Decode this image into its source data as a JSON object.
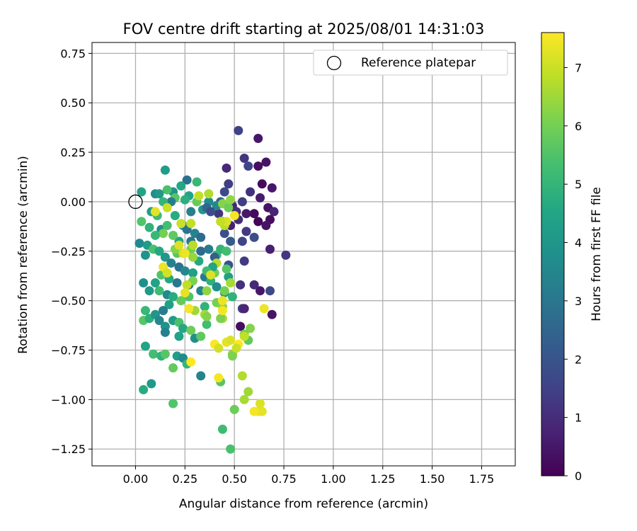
{
  "chart_data": {
    "type": "scatter",
    "title": "FOV centre drift starting at 2025/08/01 14:31:03",
    "xlabel": "Angular distance from reference (arcmin)",
    "ylabel": "Rotation from reference (arcmin)",
    "xlim": [
      -0.22,
      1.92
    ],
    "ylim": [
      -1.335,
      0.805
    ],
    "xticks": [
      0.0,
      0.25,
      0.5,
      0.75,
      1.0,
      1.25,
      1.5,
      1.75
    ],
    "xtick_labels": [
      "0.00",
      "0.25",
      "0.50",
      "0.75",
      "1.00",
      "1.25",
      "1.50",
      "1.75"
    ],
    "yticks": [
      0.75,
      0.5,
      0.25,
      0.0,
      -0.25,
      -0.5,
      -0.75,
      -1.0,
      -1.25
    ],
    "ytick_labels": [
      "0.75",
      "0.50",
      "0.25",
      "0.00",
      "−0.25",
      "−0.50",
      "−0.75",
      "−1.00",
      "−1.25"
    ],
    "grid": true,
    "legend": {
      "placement": "top-right",
      "label": "Reference platepar",
      "marker": "open-circle"
    },
    "reference_point": {
      "x": 0.0,
      "y": 0.0
    },
    "colorbar": {
      "label": "Hours from first FF file",
      "range": [
        0,
        7.6
      ],
      "ticks": [
        0,
        1,
        2,
        3,
        4,
        5,
        6,
        7
      ],
      "tick_labels": [
        "0",
        "1",
        "2",
        "3",
        "4",
        "5",
        "6",
        "7"
      ],
      "colormap": "viridis"
    },
    "series": [
      {
        "points": [
          [
            0.52,
            0.36,
            1.5
          ],
          [
            0.62,
            0.32,
            0.5
          ],
          [
            0.55,
            0.22,
            1.2
          ],
          [
            0.66,
            0.2,
            0.4
          ],
          [
            0.57,
            0.18,
            1.6
          ],
          [
            0.62,
            0.18,
            0.3
          ],
          [
            0.46,
            0.17,
            0.9
          ],
          [
            0.64,
            0.09,
            0.2
          ],
          [
            0.69,
            0.07,
            0.5
          ],
          [
            0.58,
            0.05,
            1.1
          ],
          [
            0.63,
            0.02,
            0.6
          ],
          [
            0.54,
            0.0,
            1.4
          ],
          [
            0.67,
            -0.03,
            0.4
          ],
          [
            0.6,
            -0.06,
            0.2
          ],
          [
            0.7,
            -0.05,
            0.8
          ],
          [
            0.56,
            -0.06,
            0.5
          ],
          [
            0.68,
            -0.09,
            0.3
          ],
          [
            0.62,
            -0.1,
            0.1
          ],
          [
            0.66,
            -0.12,
            0.4
          ],
          [
            0.52,
            -0.09,
            1.0
          ],
          [
            0.48,
            -0.12,
            0.7
          ],
          [
            0.56,
            -0.15,
            1.3
          ],
          [
            0.6,
            -0.18,
            1.8
          ],
          [
            0.54,
            -0.2,
            1.6
          ],
          [
            0.48,
            -0.2,
            2.2
          ],
          [
            0.45,
            -0.16,
            1.9
          ],
          [
            0.42,
            -0.06,
            1.2
          ],
          [
            0.45,
            0.05,
            1.7
          ],
          [
            0.47,
            0.09,
            1.4
          ],
          [
            0.43,
            0.0,
            2.3
          ],
          [
            0.49,
            -0.02,
            0.8
          ],
          [
            0.51,
            -0.05,
            1.1
          ],
          [
            0.44,
            -0.1,
            1.5
          ],
          [
            0.68,
            -0.24,
            0.7
          ],
          [
            0.76,
            -0.27,
            1.2
          ],
          [
            0.55,
            -0.3,
            1.3
          ],
          [
            0.47,
            -0.32,
            2.0
          ],
          [
            0.53,
            -0.42,
            1.1
          ],
          [
            0.6,
            -0.42,
            0.9
          ],
          [
            0.63,
            -0.45,
            0.5
          ],
          [
            0.68,
            -0.45,
            1.7
          ],
          [
            0.54,
            -0.54,
            1.4
          ],
          [
            0.55,
            -0.54,
            0.8
          ],
          [
            0.69,
            -0.57,
            0.4
          ],
          [
            0.53,
            -0.63,
            0.3
          ],
          [
            0.15,
            0.16,
            4.2
          ],
          [
            0.26,
            0.11,
            2.8
          ],
          [
            0.31,
            0.1,
            5.1
          ],
          [
            0.23,
            0.08,
            4.6
          ],
          [
            0.19,
            0.05,
            3.9
          ],
          [
            0.16,
            0.06,
            5.4
          ],
          [
            0.03,
            0.05,
            4.5
          ],
          [
            0.1,
            0.04,
            3.7
          ],
          [
            0.12,
            0.04,
            4.1
          ],
          [
            0.27,
            0.03,
            4.4
          ],
          [
            0.2,
            0.02,
            5.6
          ],
          [
            0.18,
            0.0,
            3.2
          ],
          [
            0.14,
            0.0,
            5.0
          ],
          [
            0.37,
            0.0,
            3.6
          ],
          [
            0.25,
            0.01,
            4.8
          ],
          [
            0.31,
            0.0,
            5.8
          ],
          [
            0.41,
            -0.02,
            3.5
          ],
          [
            0.44,
            -0.01,
            6.2
          ],
          [
            0.34,
            -0.04,
            4.0
          ],
          [
            0.28,
            -0.05,
            3.3
          ],
          [
            0.36,
            -0.03,
            2.5
          ],
          [
            0.38,
            -0.05,
            1.8
          ],
          [
            0.2,
            -0.07,
            4.7
          ],
          [
            0.11,
            -0.07,
            5.2
          ],
          [
            0.08,
            -0.05,
            4.3
          ],
          [
            0.03,
            -0.1,
            5.5
          ],
          [
            0.07,
            -0.13,
            4.9
          ],
          [
            0.13,
            -0.14,
            3.8
          ],
          [
            0.16,
            -0.12,
            5.3
          ],
          [
            0.24,
            -0.12,
            4.1
          ],
          [
            0.26,
            -0.14,
            2.9
          ],
          [
            0.3,
            -0.16,
            3.4
          ],
          [
            0.33,
            -0.18,
            2.7
          ],
          [
            0.28,
            -0.2,
            3.0
          ],
          [
            0.22,
            -0.2,
            4.5
          ],
          [
            0.19,
            -0.17,
            5.7
          ],
          [
            0.14,
            -0.16,
            6.0
          ],
          [
            0.1,
            -0.17,
            5.1
          ],
          [
            0.02,
            -0.21,
            3.6
          ],
          [
            0.06,
            -0.22,
            4.2
          ],
          [
            0.09,
            -0.24,
            5.4
          ],
          [
            0.12,
            -0.25,
            4.6
          ],
          [
            0.05,
            -0.27,
            3.9
          ],
          [
            0.15,
            -0.28,
            4.0
          ],
          [
            0.18,
            -0.31,
            3.3
          ],
          [
            0.22,
            -0.33,
            2.9
          ],
          [
            0.25,
            -0.35,
            3.5
          ],
          [
            0.29,
            -0.36,
            4.3
          ],
          [
            0.35,
            -0.38,
            3.1
          ],
          [
            0.38,
            -0.4,
            4.9
          ],
          [
            0.41,
            -0.43,
            3.7
          ],
          [
            0.45,
            -0.46,
            4.2
          ],
          [
            0.33,
            -0.45,
            3.4
          ],
          [
            0.27,
            -0.42,
            2.8
          ],
          [
            0.21,
            -0.41,
            3.0
          ],
          [
            0.17,
            -0.39,
            4.6
          ],
          [
            0.13,
            -0.37,
            5.5
          ],
          [
            0.1,
            -0.41,
            4.4
          ],
          [
            0.04,
            -0.41,
            3.8
          ],
          [
            0.07,
            -0.45,
            4.1
          ],
          [
            0.12,
            -0.45,
            5.2
          ],
          [
            0.16,
            -0.47,
            3.6
          ],
          [
            0.19,
            -0.48,
            4.7
          ],
          [
            0.23,
            -0.5,
            5.8
          ],
          [
            0.17,
            -0.52,
            4.3
          ],
          [
            0.14,
            -0.55,
            3.2
          ],
          [
            0.05,
            -0.55,
            5.1
          ],
          [
            0.04,
            -0.6,
            5.6
          ],
          [
            0.07,
            -0.59,
            4.8
          ],
          [
            0.1,
            -0.57,
            4.0
          ],
          [
            0.12,
            -0.6,
            3.5
          ],
          [
            0.15,
            -0.63,
            3.9
          ],
          [
            0.19,
            -0.6,
            4.2
          ],
          [
            0.22,
            -0.61,
            5.4
          ],
          [
            0.24,
            -0.64,
            4.6
          ],
          [
            0.28,
            -0.65,
            5.9
          ],
          [
            0.3,
            -0.69,
            3.8
          ],
          [
            0.33,
            -0.68,
            5.7
          ],
          [
            0.22,
            -0.68,
            4.4
          ],
          [
            0.15,
            -0.66,
            3.3
          ],
          [
            0.05,
            -0.73,
            4.5
          ],
          [
            0.09,
            -0.77,
            5.3
          ],
          [
            0.13,
            -0.78,
            4.9
          ],
          [
            0.15,
            -0.77,
            5.6
          ],
          [
            0.21,
            -0.78,
            4.2
          ],
          [
            0.24,
            -0.79,
            3.6
          ],
          [
            0.19,
            -0.84,
            5.8
          ],
          [
            0.26,
            -0.82,
            5.0
          ],
          [
            0.33,
            -0.88,
            3.4
          ],
          [
            0.08,
            -0.92,
            4.1
          ],
          [
            0.04,
            -0.95,
            4.7
          ],
          [
            0.19,
            -1.02,
            5.5
          ],
          [
            0.44,
            -1.15,
            5.2
          ],
          [
            0.48,
            -1.25,
            5.4
          ],
          [
            0.43,
            -0.91,
            5.6
          ],
          [
            0.35,
            -0.53,
            4.9
          ],
          [
            0.36,
            -0.62,
            5.3
          ],
          [
            0.41,
            -0.27,
            5.1
          ],
          [
            0.32,
            -0.3,
            4.6
          ],
          [
            0.33,
            -0.25,
            2.6
          ],
          [
            0.37,
            -0.24,
            3.1
          ],
          [
            0.4,
            -0.28,
            2.3
          ],
          [
            0.21,
            -0.26,
            5.6
          ],
          [
            0.2,
            -0.24,
            6.2
          ],
          [
            0.28,
            -0.24,
            5.9
          ],
          [
            0.29,
            -0.28,
            6.4
          ],
          [
            0.27,
            -0.48,
            5.5
          ],
          [
            0.29,
            -0.4,
            6.1
          ],
          [
            0.36,
            -0.45,
            6.3
          ],
          [
            0.4,
            -0.36,
            6.0
          ],
          [
            0.3,
            -0.55,
            6.5
          ],
          [
            0.35,
            -0.57,
            6.6
          ],
          [
            0.36,
            -0.58,
            6.2
          ],
          [
            0.41,
            -0.51,
            6.0
          ],
          [
            0.44,
            -0.53,
            6.3
          ],
          [
            0.44,
            -0.59,
            6.7
          ],
          [
            0.43,
            -0.59,
            6.1
          ],
          [
            0.49,
            -0.77,
            6.4
          ],
          [
            0.49,
            -0.78,
            6.1
          ],
          [
            0.5,
            -1.05,
            5.9
          ],
          [
            0.54,
            -0.88,
            6.7
          ],
          [
            0.55,
            -1.0,
            6.6
          ],
          [
            0.57,
            -0.96,
            6.5
          ],
          [
            0.58,
            -0.64,
            6.2
          ],
          [
            0.55,
            -0.67,
            6.0
          ],
          [
            0.57,
            -0.7,
            5.7
          ],
          [
            0.49,
            -0.48,
            4.9
          ],
          [
            0.47,
            -0.38,
            4.3
          ],
          [
            0.46,
            -0.34,
            5.6
          ],
          [
            0.43,
            -0.24,
            5.0
          ],
          [
            0.41,
            -0.31,
            6.8
          ],
          [
            0.39,
            -0.33,
            4.5
          ],
          [
            0.36,
            -0.35,
            5.2
          ],
          [
            0.45,
            -0.45,
            6.0
          ],
          [
            0.48,
            -0.41,
            6.6
          ],
          [
            0.46,
            -0.25,
            5.3
          ],
          [
            0.44,
            -0.1,
            6.1
          ],
          [
            0.47,
            -0.03,
            5.9
          ],
          [
            0.48,
            0.01,
            6.3
          ],
          [
            0.45,
            -0.12,
            6.8
          ],
          [
            0.5,
            -0.07,
            7.5
          ],
          [
            0.46,
            -0.1,
            7.2
          ],
          [
            0.43,
            -0.1,
            6.9
          ],
          [
            0.37,
            0.04,
            6.7
          ],
          [
            0.32,
            0.03,
            6.9
          ],
          [
            0.1,
            -0.05,
            7.3
          ],
          [
            0.16,
            -0.03,
            7.0
          ],
          [
            0.14,
            -0.33,
            7.4
          ],
          [
            0.16,
            -0.36,
            7.1
          ],
          [
            0.24,
            -0.26,
            7.0
          ],
          [
            0.22,
            -0.22,
            7.2
          ],
          [
            0.25,
            -0.26,
            7.4
          ],
          [
            0.29,
            -0.22,
            6.8
          ],
          [
            0.28,
            -0.11,
            6.9
          ],
          [
            0.23,
            -0.11,
            7.0
          ],
          [
            0.26,
            -0.42,
            6.9
          ],
          [
            0.25,
            -0.46,
            7.3
          ],
          [
            0.27,
            -0.54,
            7.5
          ],
          [
            0.38,
            -0.37,
            7.2
          ],
          [
            0.44,
            -0.5,
            7.4
          ],
          [
            0.44,
            -0.55,
            7.5
          ],
          [
            0.4,
            -0.72,
            7.6
          ],
          [
            0.42,
            -0.74,
            7.1
          ],
          [
            0.46,
            -0.71,
            7.3
          ],
          [
            0.48,
            -0.7,
            7.2
          ],
          [
            0.52,
            -0.72,
            7.6
          ],
          [
            0.51,
            -0.74,
            7.0
          ],
          [
            0.55,
            -0.68,
            6.9
          ],
          [
            0.42,
            -0.89,
            7.5
          ],
          [
            0.28,
            -0.81,
            7.6
          ],
          [
            0.65,
            -0.54,
            7.4
          ],
          [
            0.62,
            -1.06,
            7.4
          ],
          [
            0.63,
            -1.02,
            7.2
          ],
          [
            0.64,
            -1.06,
            7.3
          ],
          [
            0.6,
            -1.06,
            7.5
          ]
        ]
      }
    ]
  }
}
